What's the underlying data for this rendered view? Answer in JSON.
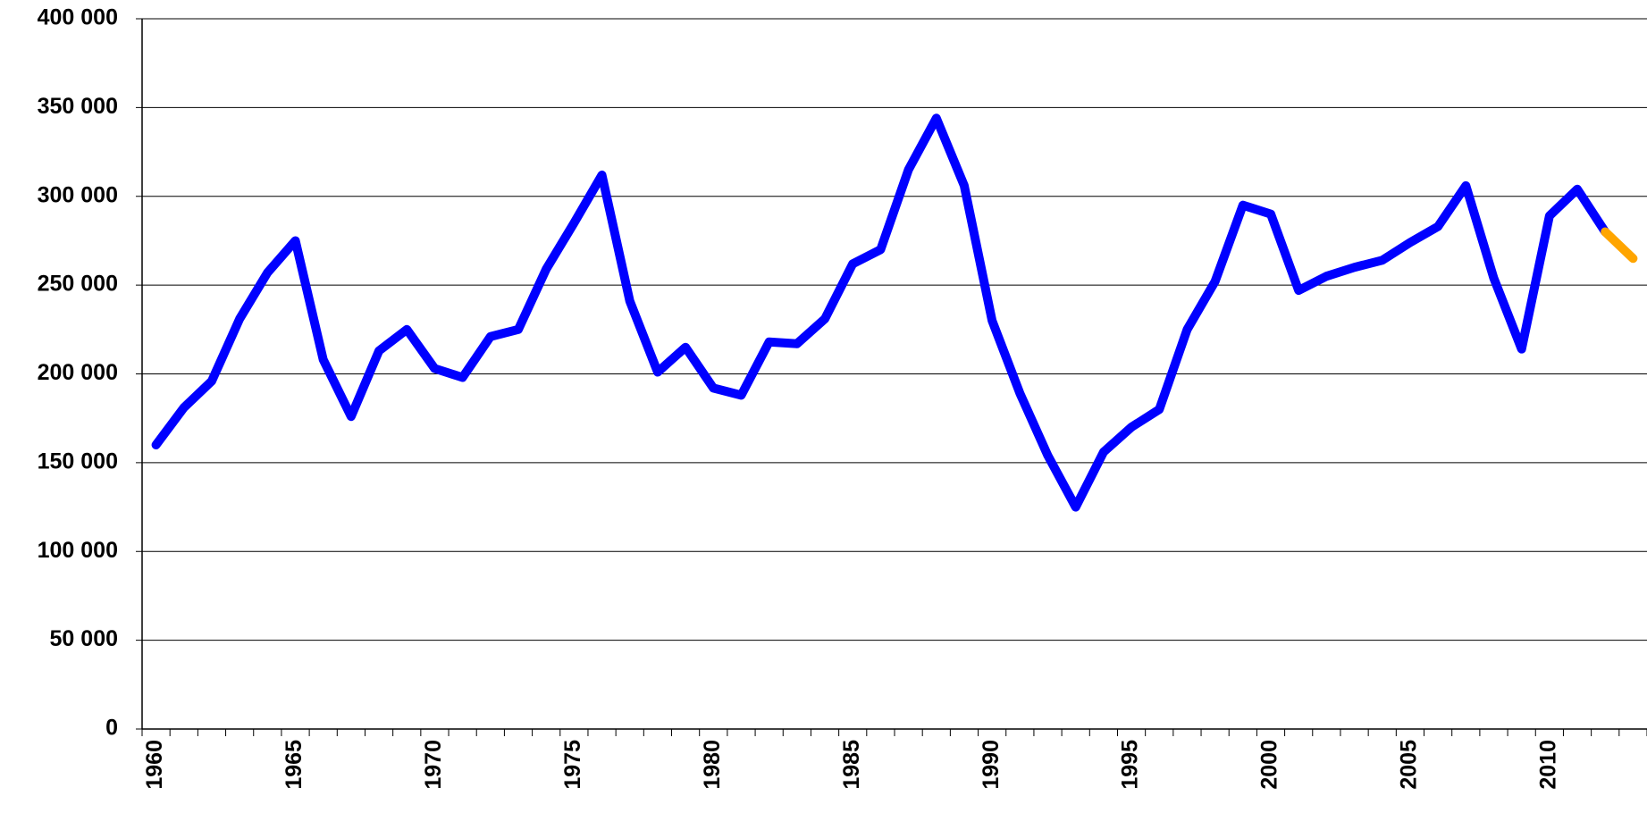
{
  "chart_data": {
    "type": "line",
    "categories": [
      "1960",
      null,
      null,
      null,
      null,
      "1965",
      null,
      null,
      null,
      null,
      "1970",
      null,
      null,
      null,
      null,
      "1975",
      null,
      null,
      null,
      null,
      "1980",
      null,
      null,
      null,
      null,
      "1985",
      null,
      null,
      null,
      null,
      "1990",
      null,
      null,
      null,
      null,
      "1995",
      null,
      null,
      null,
      null,
      "2000",
      null,
      null,
      null,
      null,
      "2005",
      null,
      null,
      null,
      null,
      "2010",
      null,
      null,
      null
    ],
    "series": [
      {
        "color": "#0000ff",
        "values": [
          160000,
          181000,
          196000,
          231000,
          257000,
          275000,
          208000,
          176000,
          213000,
          225000,
          203000,
          198000,
          221000,
          225000,
          259000,
          285000,
          312000,
          241000,
          201000,
          215000,
          192000,
          188000,
          218000,
          217000,
          231000,
          262000,
          270000,
          315000,
          344000,
          306000,
          230000,
          189000,
          154000,
          125000,
          156000,
          170000,
          180000,
          225000,
          252000,
          295000,
          290000,
          247000,
          255000,
          260000,
          264000,
          274000,
          283000,
          306000,
          254000,
          214000,
          289000,
          304000,
          280000,
          null
        ]
      },
      {
        "color": "#ffa500",
        "values": [
          null,
          null,
          null,
          null,
          null,
          null,
          null,
          null,
          null,
          null,
          null,
          null,
          null,
          null,
          null,
          null,
          null,
          null,
          null,
          null,
          null,
          null,
          null,
          null,
          null,
          null,
          null,
          null,
          null,
          null,
          null,
          null,
          null,
          null,
          null,
          null,
          null,
          null,
          null,
          null,
          null,
          null,
          null,
          null,
          null,
          null,
          null,
          null,
          null,
          null,
          null,
          null,
          280000,
          265000
        ]
      }
    ],
    "ylim": [
      0,
      400000
    ],
    "yticks": [
      0,
      {
        "value": 50000,
        "label": "50 000"
      },
      {
        "value": 100000,
        "label": "100 000"
      },
      {
        "value": 150000,
        "label": "150 000"
      },
      {
        "value": 200000,
        "label": "200 000"
      },
      {
        "value": 250000,
        "label": "250 000"
      },
      {
        "value": 300000,
        "label": "300 000"
      },
      {
        "value": 350000,
        "label": "350 000"
      },
      {
        "value": 400000,
        "label": "400 000"
      }
    ],
    "grid": true
  }
}
